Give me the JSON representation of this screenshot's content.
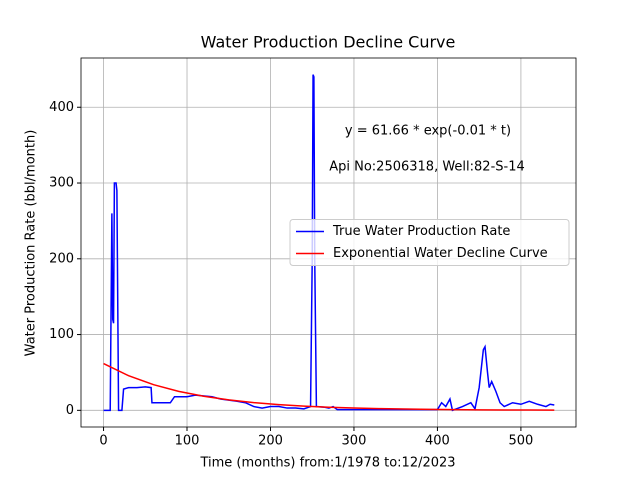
{
  "chart_data": {
    "type": "line",
    "title": "Water Production Decline Curve",
    "xlabel": "Time (months) from:1/1978 to:12/2023",
    "ylabel": "Water Production Rate (bbl/month)",
    "annotations": [
      "y = 61.66 * exp(-0.01 * t)",
      "Api No:2506318, Well:82-S-14"
    ],
    "xlim": [
      -27,
      566
    ],
    "ylim": [
      -22,
      465
    ],
    "xticks": [
      0,
      100,
      200,
      300,
      400,
      500
    ],
    "yticks": [
      0,
      100,
      200,
      300,
      400
    ],
    "grid": true,
    "legend": "center right",
    "series": [
      {
        "name": "True Water Production Rate",
        "color": "#0000ff",
        "x": [
          0,
          8,
          10,
          11,
          12,
          13,
          15,
          16,
          18,
          22,
          24,
          30,
          40,
          50,
          57,
          58,
          80,
          85,
          100,
          110,
          130,
          140,
          160,
          170,
          180,
          190,
          200,
          210,
          220,
          230,
          240,
          248,
          250,
          251,
          252,
          253,
          255,
          265,
          270,
          275,
          280,
          300,
          350,
          400,
          405,
          410,
          415,
          418,
          430,
          440,
          445,
          450,
          455,
          457,
          460,
          462,
          465,
          470,
          475,
          480,
          490,
          500,
          510,
          520,
          530,
          535,
          540
        ],
        "values": [
          0,
          0,
          260,
          120,
          115,
          300,
          300,
          290,
          0,
          0,
          28,
          30,
          30,
          31,
          30,
          10,
          10,
          18,
          18,
          20,
          18,
          15,
          12,
          10,
          5,
          3,
          5,
          5,
          3,
          3,
          2,
          5,
          200,
          443,
          440,
          200,
          5,
          4,
          3,
          5,
          1,
          1,
          1,
          1,
          10,
          5,
          15,
          0,
          5,
          10,
          2,
          30,
          80,
          84,
          50,
          30,
          38,
          25,
          10,
          5,
          10,
          8,
          12,
          8,
          5,
          8,
          7
        ]
      },
      {
        "name": "Exponential Water Decline Curve",
        "color": "#ff0000",
        "x": [
          0,
          30,
          60,
          90,
          120,
          150,
          180,
          210,
          240,
          270,
          300,
          330,
          360,
          390,
          420,
          450,
          480,
          510,
          540
        ],
        "values": [
          61.66,
          45.68,
          33.84,
          25.07,
          18.57,
          13.76,
          10.19,
          7.55,
          5.59,
          4.14,
          3.07,
          2.27,
          1.69,
          1.25,
          0.92,
          0.68,
          0.51,
          0.38,
          0.28
        ]
      }
    ]
  }
}
